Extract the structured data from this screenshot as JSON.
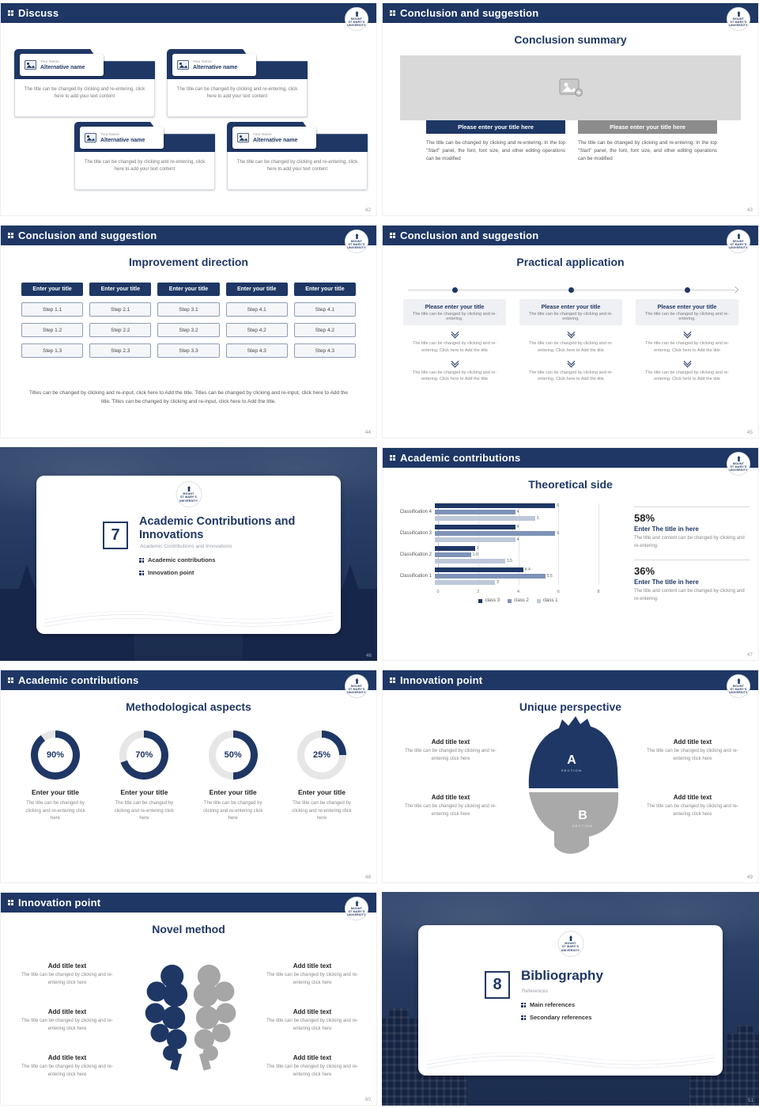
{
  "logo": {
    "l1": "MOUNT",
    "l2": "ST MARY'S",
    "l3": "UNIVERSITY"
  },
  "common": {
    "your_name": "Your Name",
    "alternative_name": "Alternative name",
    "folder_body": "The title can be changed by clicking and re-entering, click here to add your text content",
    "panel_edit": "The title can be changed by clicking and re-entering. In the top \"Start\" panel, the font, font size, and other editing operations can be modified",
    "re_enter_short": "The title can be changed by clicking and re-entering.",
    "re_enter_add": "The title can be changed by clicking and re-entering. Click here to Add the title",
    "re_enter_click": "The title can be changed by clicking and re-entering click here",
    "title_content": "The title and content can be changed by clicking and re-entering.",
    "add_title": "Add title text",
    "enter_title": "Enter your title",
    "enter_title_here": "Enter The title in here",
    "please_title": "Please enter your title",
    "please_title_here": "Please enter your title here",
    "section": "SECTION"
  },
  "slides": {
    "s42": {
      "header": "Discuss",
      "page": "42"
    },
    "s43": {
      "header": "Conclusion and suggestion",
      "title": "Conclusion summary",
      "page": "43"
    },
    "s44": {
      "header": "Conclusion and suggestion",
      "title": "Improvement direction",
      "page": "44",
      "cols": [
        {
          "h": "Enter your title",
          "steps": [
            "Step 1.1",
            "Step 1.2",
            "Step 1.3"
          ]
        },
        {
          "h": "Enter your title",
          "steps": [
            "Step 2.1",
            "Step 2.2",
            "Step 2.3"
          ]
        },
        {
          "h": "Enter your title",
          "steps": [
            "Step 3.1",
            "Step 3.2",
            "Step 3.3"
          ]
        },
        {
          "h": "Enter your title",
          "steps": [
            "Step 4.1",
            "Step 4.2",
            "Step 4.3"
          ]
        },
        {
          "h": "Enter your title",
          "steps": [
            "Step 4.1",
            "Step 4.2",
            "Step 4.3"
          ]
        }
      ],
      "footer": "Titles can be changed by clicking and re-input, click here to Add the title. Titles can be changed by clicking and re-input, click here to Add the title. Titles can be changed by clicking and re-input, click here to Add the title."
    },
    "s45": {
      "header": "Conclusion and suggestion",
      "title": "Practical application",
      "page": "45"
    },
    "s46": {
      "number": "7",
      "title": "Academic Contributions and Innovations",
      "subtitle": "Academic Contributions and Innovations",
      "bullets": [
        "Academic contributions",
        "Innovation point"
      ],
      "page": "46"
    },
    "s47": {
      "header": "Academic contributions",
      "title": "Theoretical side",
      "page": "47",
      "stats": [
        {
          "pct": "58%",
          "label": "Enter The title in here"
        },
        {
          "pct": "36%",
          "label": "Enter The title in here"
        }
      ]
    },
    "s48": {
      "header": "Academic contributions",
      "title": "Methodological aspects",
      "page": "48",
      "donuts": [
        90,
        70,
        50,
        25
      ]
    },
    "s49": {
      "header": "Innovation point",
      "title": "Unique perspective",
      "page": "49",
      "a": "A",
      "b": "B"
    },
    "s50": {
      "header": "Innovation point",
      "title": "Novel method",
      "page": "50"
    },
    "s51": {
      "number": "8",
      "title": "Bibliography",
      "subtitle": "References",
      "bullets": [
        "Main references",
        "Secondary references"
      ],
      "page": "51"
    }
  },
  "chart_data": {
    "type": "bar",
    "orientation": "horizontal",
    "title": "Theoretical side",
    "categories": [
      "Classification 1",
      "Classification 2",
      "Classification 3",
      "Classification 4"
    ],
    "series": [
      {
        "name": "class 3",
        "color": "#1e3765",
        "values": [
          4.4,
          2,
          4,
          6
        ]
      },
      {
        "name": "class 2",
        "color": "#7e93b8",
        "values": [
          5.5,
          1.8,
          6,
          4
        ]
      },
      {
        "name": "class 1",
        "color": "#bdc8d9",
        "values": [
          3,
          3.5,
          4,
          5
        ]
      }
    ],
    "xlim": [
      0,
      8
    ],
    "xticks": [
      0,
      2,
      4,
      6,
      8
    ],
    "legend": [
      "class 3",
      "class 2",
      "class 1"
    ],
    "legend_position": "bottom",
    "grid": true
  }
}
